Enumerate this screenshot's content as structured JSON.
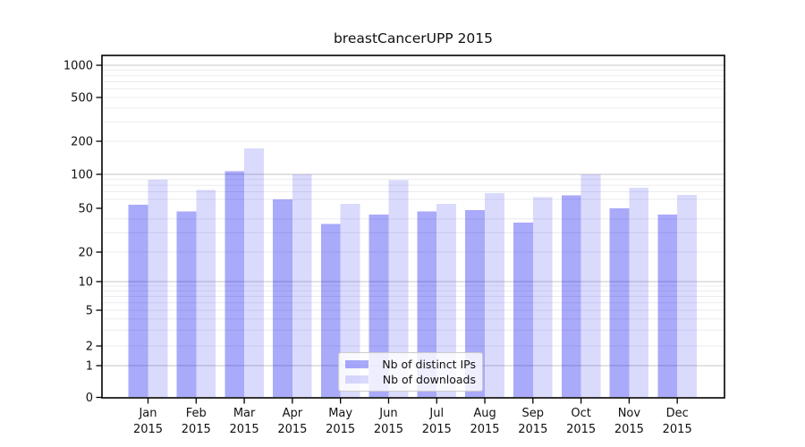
{
  "chart_data": {
    "type": "bar",
    "title": "breastCancerUPP 2015",
    "categories": [
      "Jan 2015",
      "Feb 2015",
      "Mar 2015",
      "Apr 2015",
      "May 2015",
      "Jun 2015",
      "Jul 2015",
      "Aug 2015",
      "Sep 2015",
      "Oct 2015",
      "Nov 2015",
      "Dec 2015"
    ],
    "series": [
      {
        "name": "Nb of distinct IPs",
        "color_on_white": "#aaaaf8",
        "fill": "rgba(0,0,240,0.333)",
        "values": [
          54,
          47,
          107,
          60,
          36,
          44,
          47,
          48,
          37,
          65,
          50,
          44
        ]
      },
      {
        "name": "Nb of downloads",
        "color_on_white": "#dadaf8",
        "fill": "rgba(0,0,240,0.145)",
        "values": [
          90,
          73,
          172,
          100,
          55,
          89,
          55,
          68,
          63,
          100,
          76,
          66
        ]
      }
    ],
    "yscale": "symlog",
    "yticks": [
      0,
      1,
      2,
      5,
      10,
      20,
      50,
      100,
      200,
      500,
      1000
    ],
    "ylim": [
      0,
      1230
    ],
    "xlabel": "",
    "ylabel": "",
    "grid": "on",
    "legend_position": "lower center",
    "axis_color": "#000000",
    "grid_major_color": "#c6c6c6",
    "grid_minor_color": "#ebebf0"
  }
}
